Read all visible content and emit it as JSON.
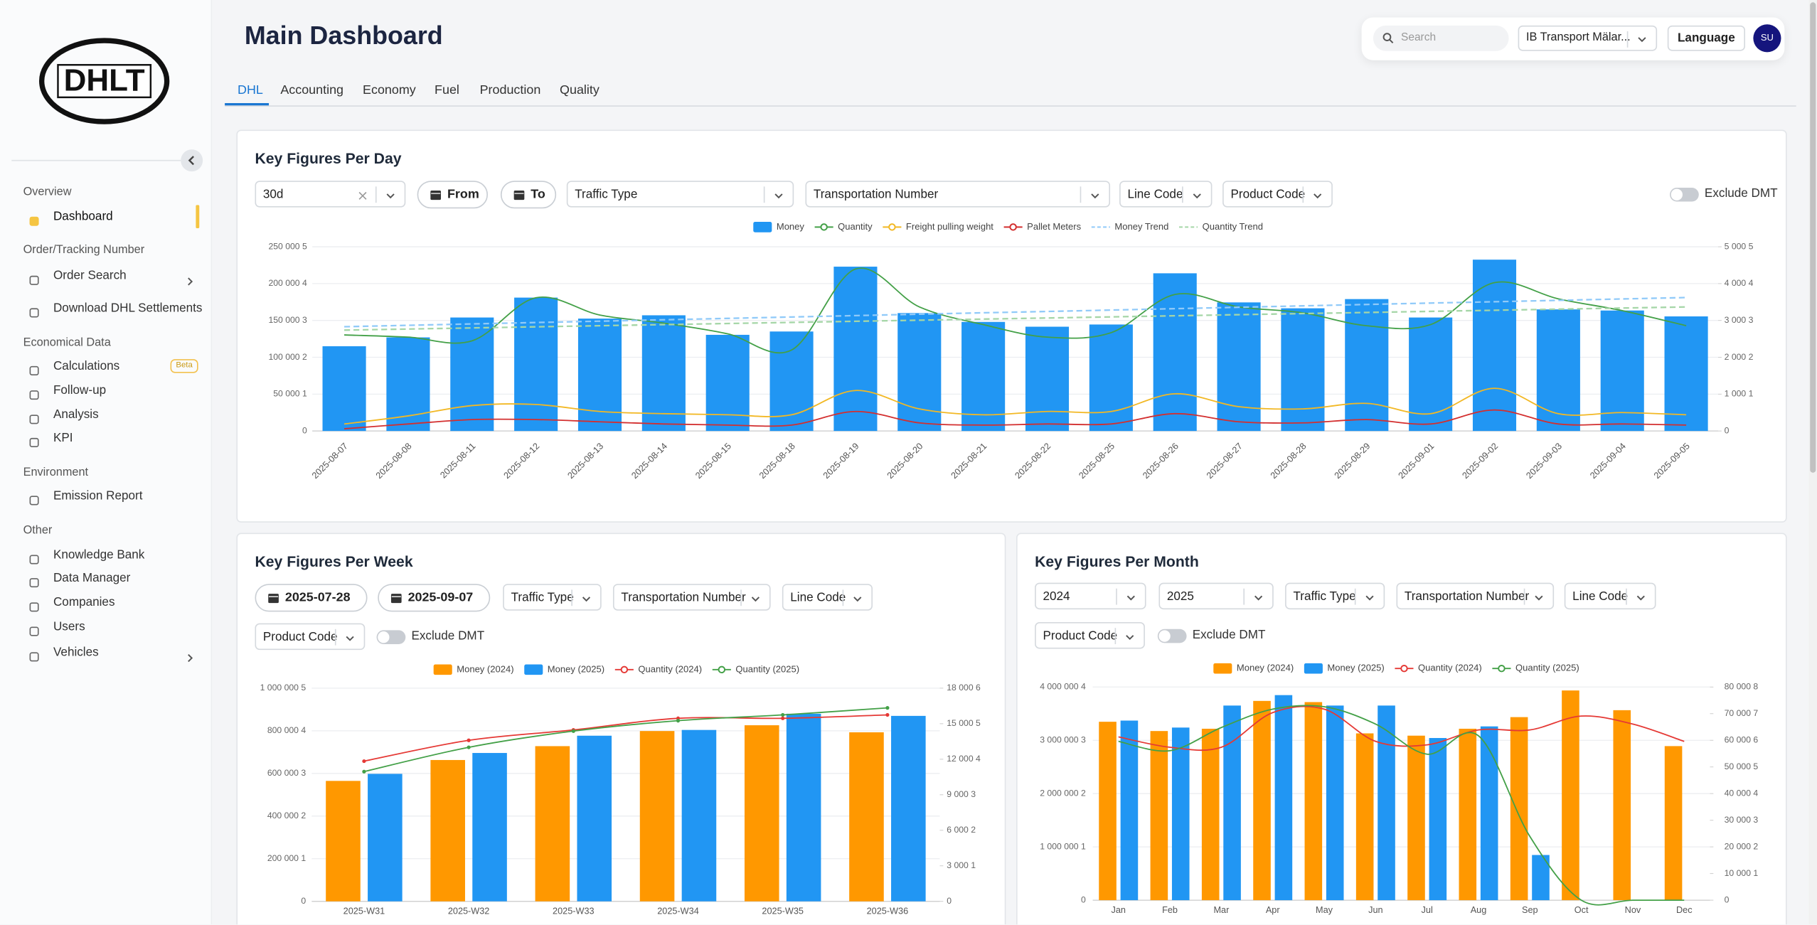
{
  "sidebar": {
    "logo": "DHLT",
    "groups": [
      {
        "heading": "Overview",
        "items": [
          {
            "label": "Dashboard"
          }
        ]
      },
      {
        "heading": "Order/Tracking Number",
        "items": [
          {
            "label": "Order Search"
          },
          {
            "label": "Download DHL Settlements"
          }
        ]
      },
      {
        "heading": "Economical Data",
        "items": [
          {
            "label": "Calculations",
            "badge": "Beta"
          },
          {
            "label": "Follow-up"
          },
          {
            "label": "Analysis"
          },
          {
            "label": "KPI"
          }
        ]
      },
      {
        "heading": "Environment",
        "items": [
          {
            "label": "Emission Report"
          }
        ]
      },
      {
        "heading": "Other",
        "items": [
          {
            "label": "Knowledge Bank"
          },
          {
            "label": "Data Manager"
          },
          {
            "label": "Companies"
          },
          {
            "label": "Users"
          },
          {
            "label": "Vehicles"
          }
        ]
      }
    ]
  },
  "header": {
    "title": "Main Dashboard",
    "search_placeholder": "Search",
    "company": "IB Transport Mälar...",
    "language": "Language",
    "avatar": "SU"
  },
  "tabs": [
    "DHL",
    "Accounting",
    "Economy",
    "Fuel",
    "Production",
    "Quality"
  ],
  "cards": [
    {
      "filters": {
        "range": "30d",
        "from": "From",
        "to": "To",
        "traffic_type": "Traffic Type",
        "transportation_number": "Transportation Number",
        "line_code": "Line Code",
        "product_code": "Product Code",
        "exclude": "Exclude DMT"
      }
    },
    {
      "filters": {
        "from": "2025-07-28",
        "to": "2025-09-07",
        "traffic_type": "Traffic Type",
        "transportation_number": "Transportation Number",
        "line_code": "Line Code",
        "product_code": "Product Code",
        "exclude": "Exclude DMT"
      }
    },
    {
      "filters": {
        "from_year": "2024",
        "to_year": "2025",
        "traffic_type": "Traffic Type",
        "transportation_number": "Transportation Number",
        "line_code": "Line Code",
        "product_code": "Product Code",
        "exclude": "Exclude DMT"
      }
    }
  ],
  "chart_data": [
    {
      "type": "bar",
      "title": "Key Figures Per Day",
      "grid": true,
      "categories": [
        "2025-08-07",
        "2025-08-08",
        "2025-08-11",
        "2025-08-12",
        "2025-08-13",
        "2025-08-14",
        "2025-08-15",
        "2025-08-18",
        "2025-08-19",
        "2025-08-20",
        "2025-08-21",
        "2025-08-22",
        "2025-08-25",
        "2025-08-26",
        "2025-08-27",
        "2025-08-28",
        "2025-08-29",
        "2025-09-01",
        "2025-09-02",
        "2025-09-03",
        "2025-09-04",
        "2025-09-05"
      ],
      "ylim": [
        0,
        250005
      ],
      "yticks": [
        0,
        {
          "value": 50001,
          "label": "50 000 1"
        },
        {
          "value": 100002,
          "label": "100 000 2"
        },
        {
          "value": 150003,
          "label": "150 000 3"
        },
        {
          "value": 200004,
          "label": "200 000 4"
        },
        {
          "value": 250005,
          "label": "250 000 5"
        }
      ],
      "y2lim": [
        0,
        5005
      ],
      "y2ticks": [
        0,
        {
          "value": 1001,
          "label": "1 000 1"
        },
        {
          "value": 2002,
          "label": "2 000 2"
        },
        {
          "value": 3003,
          "label": "3 000 3"
        },
        {
          "value": 4004,
          "label": "4 000 4"
        },
        {
          "value": 5005,
          "label": "5 000 5"
        }
      ],
      "series": [
        {
          "name": "Money",
          "type": "bar",
          "color": "#2196f3",
          "values": [
            115000,
            127000,
            154000,
            181000,
            152500,
            157000,
            130500,
            135000,
            223000,
            160000,
            148000,
            141500,
            144500,
            214000,
            174500,
            166500,
            179000,
            154000,
            232500,
            165000,
            163500,
            155500
          ]
        },
        {
          "name": "Quantity",
          "type": "line",
          "axis": "y2",
          "color": "#43a047",
          "values": [
            2610,
            2550,
            2450,
            3620,
            3150,
            2930,
            2640,
            2200,
            4400,
            3370,
            2890,
            2550,
            2670,
            3710,
            3370,
            3210,
            2860,
            2890,
            4030,
            3590,
            3270,
            2860
          ]
        },
        {
          "name": "Freight pulling weight",
          "type": "line",
          "axis": "y2",
          "color": "#f2b824",
          "values": [
            190,
            410,
            690,
            720,
            530,
            470,
            440,
            440,
            1100,
            600,
            440,
            530,
            530,
            1010,
            660,
            600,
            750,
            470,
            1160,
            470,
            500,
            440
          ]
        },
        {
          "name": "Pallet Meters",
          "type": "line",
          "axis": "y2",
          "color": "#d32f2f",
          "values": [
            60,
            190,
            310,
            310,
            250,
            190,
            160,
            160,
            530,
            220,
            160,
            190,
            190,
            470,
            250,
            220,
            310,
            190,
            570,
            190,
            190,
            160
          ]
        },
        {
          "name": "Money Trend",
          "type": "line",
          "dashed": true,
          "color": "#90caf9",
          "values": [
            141500,
            143400,
            145300,
            147200,
            149000,
            150900,
            152800,
            154700,
            156600,
            158500,
            160400,
            162200,
            164100,
            166000,
            167900,
            169800,
            171700,
            173600,
            175400,
            177300,
            179200,
            181100
          ]
        },
        {
          "name": "Quantity Trend",
          "type": "line",
          "axis": "y2",
          "dashed": true,
          "color": "#a5d6a7",
          "values": [
            2740,
            2770,
            2800,
            2830,
            2860,
            2890,
            2920,
            2950,
            2980,
            3010,
            3040,
            3070,
            3100,
            3130,
            3160,
            3190,
            3220,
            3250,
            3280,
            3310,
            3340,
            3370
          ]
        }
      ]
    },
    {
      "type": "bar",
      "title": "Key Figures Per Week",
      "grid": true,
      "markers": true,
      "categories": [
        "2025-W31",
        "2025-W32",
        "2025-W33",
        "2025-W34",
        "2025-W35",
        "2025-W36"
      ],
      "ylim": [
        0,
        1000005
      ],
      "yticks": [
        0,
        {
          "value": 200001,
          "label": "200 000 1"
        },
        {
          "value": 400002,
          "label": "400 000 2"
        },
        {
          "value": 600003,
          "label": "600 000 3"
        },
        {
          "value": 800004,
          "label": "800 000 4"
        },
        {
          "value": 1000005,
          "label": "1 000 000 5"
        }
      ],
      "y2lim": [
        0,
        18006
      ],
      "y2ticks": [
        0,
        {
          "value": 3001,
          "label": "3 000 1"
        },
        {
          "value": 6002,
          "label": "6 000 2"
        },
        {
          "value": 9003,
          "label": "9 000 3"
        },
        {
          "value": 12004,
          "label": "12 000 4"
        },
        {
          "value": 15005,
          "label": "15 000 5"
        },
        {
          "value": 18006,
          "label": "18 000 6"
        }
      ],
      "series": [
        {
          "name": "Money (2024)",
          "type": "bar",
          "color": "#ff9800",
          "values": [
            565000,
            663000,
            728000,
            799000,
            826000,
            793000
          ]
        },
        {
          "name": "Money (2025)",
          "type": "bar",
          "color": "#2196f3",
          "values": [
            598000,
            696000,
            777000,
            804000,
            880000,
            870000
          ]
        },
        {
          "name": "Quantity (2024)",
          "type": "line",
          "axis": "y2",
          "color": "#e53935",
          "values": [
            11840,
            13600,
            14480,
            15460,
            15460,
            15750
          ]
        },
        {
          "name": "Quantity (2025)",
          "type": "line",
          "axis": "y2",
          "color": "#43a047",
          "values": [
            10960,
            13010,
            14380,
            15260,
            15750,
            16340
          ]
        }
      ]
    },
    {
      "type": "bar",
      "title": "Key Figures Per Month",
      "grid": true,
      "categories": [
        "Jan",
        "Feb",
        "Mar",
        "Apr",
        "May",
        "Jun",
        "Jul",
        "Aug",
        "Sep",
        "Oct",
        "Nov",
        "Dec"
      ],
      "ylim": [
        0,
        4000004
      ],
      "yticks": [
        0,
        {
          "value": 1000001,
          "label": "1 000 000 1"
        },
        {
          "value": 2000002,
          "label": "2 000 000 2"
        },
        {
          "value": 3000003,
          "label": "3 000 000 3"
        },
        {
          "value": 4000004,
          "label": "4 000 000 4"
        }
      ],
      "y2lim": [
        0,
        80008
      ],
      "y2ticks": [
        0,
        {
          "value": 10001,
          "label": "10 000 1"
        },
        {
          "value": 20002,
          "label": "20 000 2"
        },
        {
          "value": 30003,
          "label": "30 000 3"
        },
        {
          "value": 40004,
          "label": "40 000 4"
        },
        {
          "value": 50005,
          "label": "50 000 5"
        },
        {
          "value": 60006,
          "label": "60 000 6"
        },
        {
          "value": 70007,
          "label": "70 000 7"
        },
        {
          "value": 80008,
          "label": "80 000 8"
        }
      ],
      "series": [
        {
          "name": "Money (2024)",
          "type": "bar",
          "color": "#ff9800",
          "values": [
            3348000,
            3174000,
            3217000,
            3739000,
            3717000,
            3130000,
            3087000,
            3217000,
            3435000,
            3935000,
            3565000,
            2891000
          ]
        },
        {
          "name": "Money (2025)",
          "type": "bar",
          "color": "#2196f3",
          "values": [
            3370000,
            3239000,
            3652000,
            3848000,
            3652000,
            3652000,
            3043000,
            3261000,
            848000,
            null,
            null,
            null
          ]
        },
        {
          "name": "Quantity (2024)",
          "type": "line",
          "axis": "y2",
          "color": "#e53935",
          "values": [
            61300,
            57400,
            57400,
            70400,
            71700,
            59600,
            58300,
            63900,
            63900,
            69100,
            66100,
            59600
          ]
        },
        {
          "name": "Quantity (2025)",
          "type": "line",
          "axis": "y2",
          "color": "#43a047",
          "values": [
            59600,
            56100,
            64800,
            71700,
            72600,
            66100,
            54800,
            61700,
            23900,
            0,
            0,
            0
          ]
        }
      ]
    }
  ]
}
